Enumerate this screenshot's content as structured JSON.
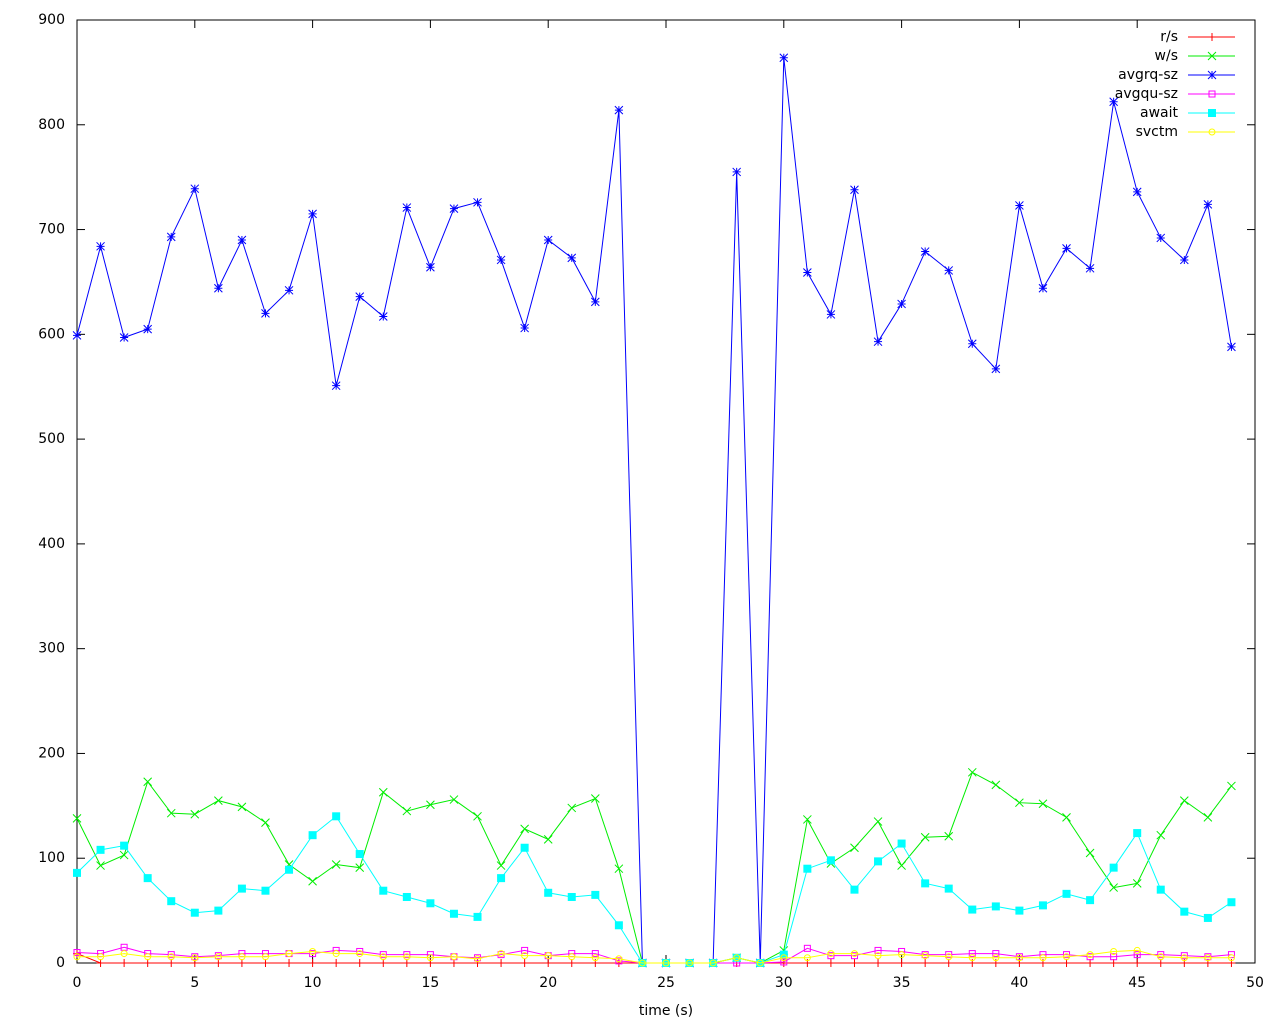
{
  "chart_data": {
    "type": "line",
    "xlabel": "time (s)",
    "x": [
      0,
      1,
      2,
      3,
      4,
      5,
      6,
      7,
      8,
      9,
      10,
      11,
      12,
      13,
      14,
      15,
      16,
      17,
      18,
      19,
      20,
      21,
      22,
      23,
      24,
      25,
      26,
      27,
      28,
      29,
      30,
      31,
      32,
      33,
      34,
      35,
      36,
      37,
      38,
      39,
      40,
      41,
      42,
      43,
      44,
      45,
      46,
      47,
      48,
      49
    ],
    "xlim": [
      0,
      50
    ],
    "xticks": [
      0,
      5,
      10,
      15,
      20,
      25,
      30,
      35,
      40,
      45,
      50
    ],
    "ylim": [
      0,
      900
    ],
    "yticks": [
      0,
      100,
      200,
      300,
      400,
      500,
      600,
      700,
      800,
      900
    ],
    "grid": false,
    "legend": "top-right",
    "series": [
      {
        "name": "r/s",
        "color": "#ff0000",
        "marker": "plus",
        "values": [
          9,
          0,
          0,
          0,
          0,
          0,
          0,
          0,
          0,
          0,
          0,
          0,
          0,
          0,
          0,
          0,
          0,
          0,
          0,
          0,
          0,
          0,
          0,
          0,
          0,
          0,
          0,
          0,
          0,
          0,
          0,
          0,
          0,
          0,
          0,
          0,
          0,
          0,
          0,
          0,
          0,
          0,
          0,
          0,
          0,
          0,
          0,
          0,
          0,
          0
        ]
      },
      {
        "name": "w/s",
        "color": "#00ee00",
        "marker": "cross",
        "values": [
          138,
          93,
          103,
          173,
          143,
          142,
          155,
          149,
          134,
          94,
          78,
          94,
          91,
          163,
          145,
          151,
          156,
          140,
          93,
          128,
          118,
          148,
          157,
          90,
          0,
          0,
          0,
          0,
          5,
          0,
          12,
          137,
          95,
          110,
          135,
          93,
          120,
          121,
          182,
          170,
          153,
          152,
          139,
          105,
          72,
          76,
          122,
          155,
          139,
          169
        ]
      },
      {
        "name": "avgrq-sz",
        "color": "#0000ff",
        "marker": "star",
        "values": [
          599,
          684,
          597,
          605,
          693,
          739,
          644,
          690,
          620,
          642,
          715,
          551,
          636,
          617,
          721,
          664,
          720,
          726,
          671,
          606,
          690,
          673,
          631,
          814,
          0,
          0,
          0,
          0,
          755,
          0,
          864,
          659,
          619,
          738,
          593,
          629,
          679,
          661,
          591,
          567,
          723,
          644,
          682,
          663,
          822,
          736,
          692,
          671,
          724,
          588
        ]
      },
      {
        "name": "avgqu-sz",
        "color": "#ff00ff",
        "marker": "box",
        "values": [
          10,
          9,
          15,
          9,
          8,
          6,
          7,
          9,
          9,
          9,
          9,
          12,
          11,
          8,
          8,
          8,
          6,
          5,
          8,
          12,
          7,
          9,
          9,
          2,
          0,
          0,
          0,
          0,
          0,
          0,
          1,
          14,
          7,
          7,
          12,
          11,
          8,
          8,
          9,
          9,
          6,
          8,
          8,
          6,
          6,
          8,
          8,
          7,
          6,
          8
        ]
      },
      {
        "name": "await",
        "color": "#00ffff",
        "marker": "filledbox",
        "values": [
          86,
          108,
          112,
          81,
          59,
          48,
          50,
          71,
          69,
          89,
          122,
          140,
          104,
          69,
          63,
          57,
          47,
          44,
          81,
          110,
          67,
          63,
          65,
          36,
          0,
          0,
          0,
          0,
          5,
          0,
          8,
          90,
          98,
          70,
          97,
          114,
          76,
          71,
          51,
          54,
          50,
          55,
          66,
          60,
          91,
          124,
          70,
          49,
          43,
          58
        ]
      },
      {
        "name": "svctm",
        "color": "#ffff00",
        "marker": "circle",
        "values": [
          6,
          6,
          9,
          6,
          6,
          5,
          6,
          6,
          6,
          9,
          11,
          9,
          9,
          6,
          6,
          5,
          6,
          4,
          9,
          7,
          7,
          6,
          5,
          4,
          0,
          0,
          0,
          0,
          5,
          0,
          5,
          5,
          9,
          9,
          7,
          8,
          7,
          6,
          5,
          5,
          5,
          5,
          6,
          8,
          11,
          12,
          6,
          5,
          5,
          5
        ]
      }
    ]
  }
}
